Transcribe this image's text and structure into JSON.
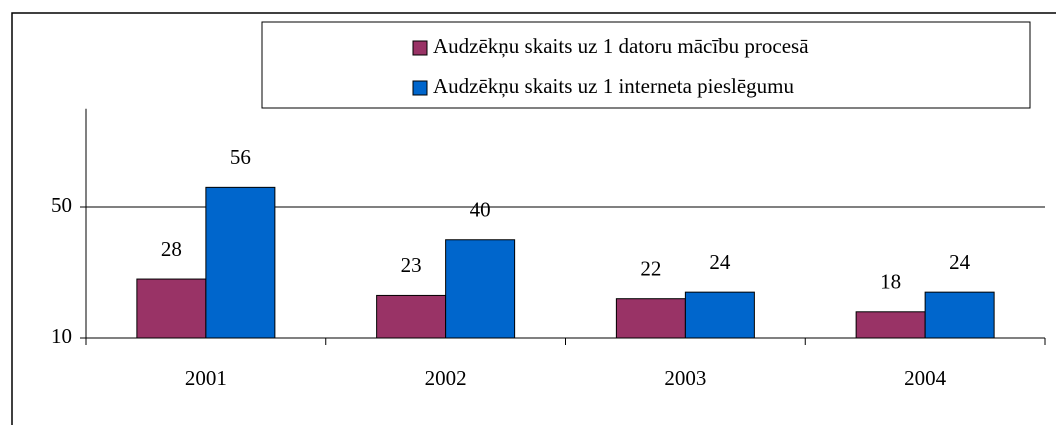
{
  "chart_data": {
    "type": "bar",
    "categories": [
      "2001",
      "2002",
      "2003",
      "2004"
    ],
    "series": [
      {
        "name": "Audzēkņu skaits uz 1 datoru mācību procesā",
        "color": "#993366",
        "values": [
          28,
          23,
          22,
          18
        ]
      },
      {
        "name": "Audzēkņu skaits uz 1 interneta pieslēgumu",
        "color": "#0066cc",
        "values": [
          56,
          40,
          24,
          24
        ]
      }
    ],
    "ylim": [
      10,
      80
    ],
    "yticks": [
      10,
      50
    ],
    "grid": true,
    "legend": "top"
  }
}
